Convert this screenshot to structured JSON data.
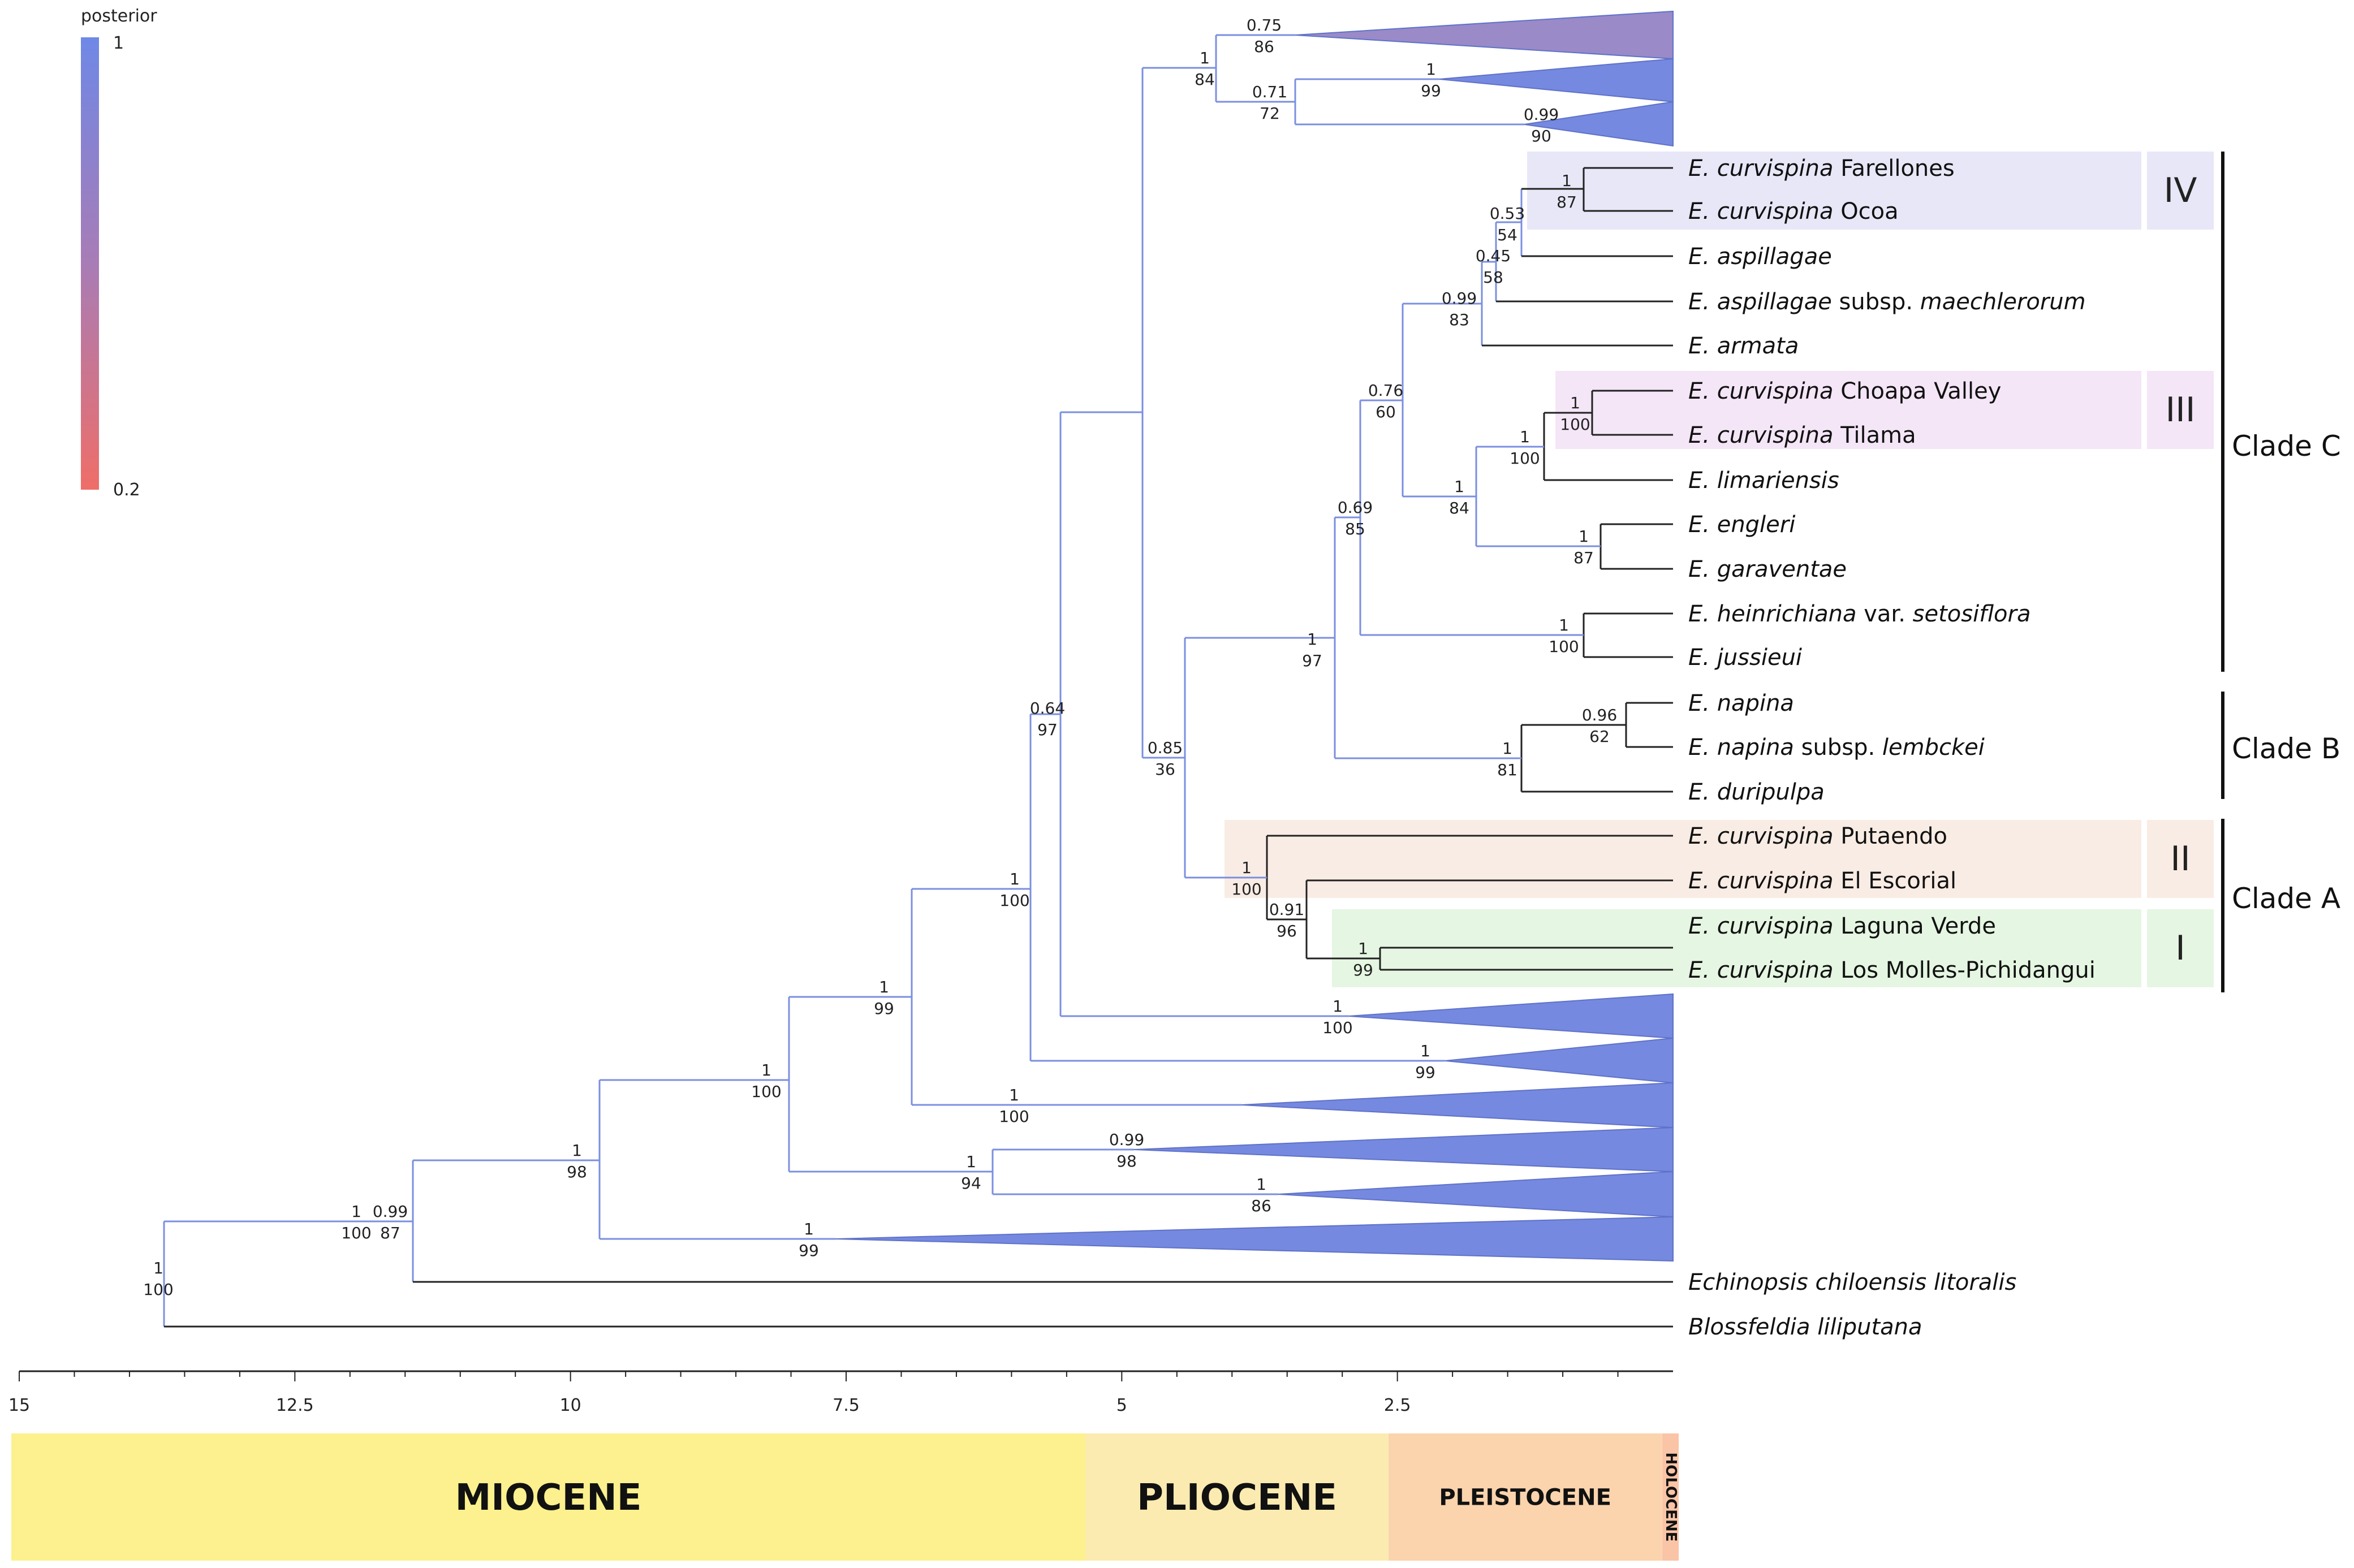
{
  "legend": {
    "title": "posterior",
    "max_label": "1",
    "min_label": "0.2",
    "max_color": "#6f88e6",
    "min_color": "#ef6e68"
  },
  "axis": {
    "range_my": [
      15,
      0
    ],
    "ticks": [
      "15",
      "12.5",
      "10",
      "7.5",
      "5",
      "2.5"
    ]
  },
  "epochs": [
    {
      "name": "MIOCENE",
      "color": "#fcf18e"
    },
    {
      "name": "PLIOCENE",
      "color": "#fcebb0"
    },
    {
      "name": "PLEISTOCENE",
      "color": "#fbd3ad"
    },
    {
      "name": "HOLOCENE",
      "color": "#fac4a6"
    }
  ],
  "taxa": [
    {
      "genus": "E.",
      "epithet": "curvispina",
      "rest": "Farellones"
    },
    {
      "genus": "E.",
      "epithet": "curvispina",
      "rest": "Ocoa"
    },
    {
      "genus": "E.",
      "epithet": "aspillagae",
      "rest": ""
    },
    {
      "genus": "E.",
      "epithet": "aspillagae",
      "rest": "subsp.",
      "infra": "maechlerorum"
    },
    {
      "genus": "E.",
      "epithet": "armata",
      "rest": ""
    },
    {
      "genus": "E.",
      "epithet": "curvispina",
      "rest": "Choapa Valley"
    },
    {
      "genus": "E.",
      "epithet": "curvispina",
      "rest": "Tilama"
    },
    {
      "genus": "E.",
      "epithet": "limariensis",
      "rest": ""
    },
    {
      "genus": "E.",
      "epithet": "engleri",
      "rest": ""
    },
    {
      "genus": "E.",
      "epithet": "garaventae",
      "rest": ""
    },
    {
      "genus": "E.",
      "epithet": "heinrichiana",
      "rest": "var.",
      "infra": "setosiflora"
    },
    {
      "genus": "E.",
      "epithet": "jussieui",
      "rest": ""
    },
    {
      "genus": "E.",
      "epithet": "napina",
      "rest": ""
    },
    {
      "genus": "E.",
      "epithet": "napina",
      "rest": "subsp.",
      "infra": "lembckei"
    },
    {
      "genus": "E.",
      "epithet": "duripulpa",
      "rest": ""
    },
    {
      "genus": "E.",
      "epithet": "curvispina",
      "rest": "Putaendo"
    },
    {
      "genus": "E.",
      "epithet": "curvispina",
      "rest": "El Escorial"
    },
    {
      "genus": "E.",
      "epithet": "curvispina",
      "rest": "Laguna Verde"
    },
    {
      "genus": "E.",
      "epithet": "curvispina",
      "rest": "Los Molles-Pichidangui"
    },
    {
      "genus": "",
      "epithet": "Echinopsis chiloensis litoralis",
      "rest": ""
    },
    {
      "genus": "",
      "epithet": "Blossfeldia liliputana",
      "rest": ""
    }
  ],
  "groups": [
    {
      "label": "IV",
      "color": "#e7e7f8"
    },
    {
      "label": "III",
      "color": "#f4e5f7"
    },
    {
      "label": "II",
      "color": "#f9ece4"
    },
    {
      "label": "I",
      "color": "#e5f6e2"
    }
  ],
  "clades": [
    "Clade C",
    "Clade B",
    "Clade A"
  ],
  "supports": [
    {
      "pp": "0.75",
      "bs": "86"
    },
    {
      "pp": "1",
      "bs": "84"
    },
    {
      "pp": "0.71",
      "bs": "72"
    },
    {
      "pp": "1",
      "bs": "99"
    },
    {
      "pp": "0.99",
      "bs": "90"
    },
    {
      "pp": "1",
      "bs": "87"
    },
    {
      "pp": "0.53",
      "bs": "54"
    },
    {
      "pp": "0.45",
      "bs": "58"
    },
    {
      "pp": "0.99",
      "bs": "83"
    },
    {
      "pp": "0.76",
      "bs": "60"
    },
    {
      "pp": "1",
      "bs": "100"
    },
    {
      "pp": "1",
      "bs": "100"
    },
    {
      "pp": "1",
      "bs": "84"
    },
    {
      "pp": "1",
      "bs": "87"
    },
    {
      "pp": "0.69",
      "bs": "85"
    },
    {
      "pp": "1",
      "bs": "100"
    },
    {
      "pp": "1",
      "bs": "97"
    },
    {
      "pp": "0.96",
      "bs": "62"
    },
    {
      "pp": "1",
      "bs": "81"
    },
    {
      "pp": "0.85",
      "bs": "36"
    },
    {
      "pp": "1",
      "bs": "100"
    },
    {
      "pp": "0.91",
      "bs": "96"
    },
    {
      "pp": "1",
      "bs": "99"
    },
    {
      "pp": "1",
      "bs": "100"
    },
    {
      "pp": "0.64",
      "bs": "97"
    },
    {
      "pp": "1",
      "bs": "100"
    },
    {
      "pp": "1",
      "bs": "99"
    },
    {
      "pp": "1",
      "bs": "100"
    },
    {
      "pp": "1",
      "bs": "99"
    },
    {
      "pp": "0.99",
      "bs": "98"
    },
    {
      "pp": "1",
      "bs": "86"
    },
    {
      "pp": "1",
      "bs": "94"
    },
    {
      "pp": "1",
      "bs": "100"
    },
    {
      "pp": "1",
      "bs": "98"
    },
    {
      "pp": "0.99",
      "bs": "87"
    },
    {
      "pp": "1",
      "bs": "99"
    },
    {
      "pp": "1",
      "bs": "100"
    },
    {
      "pp": "1",
      "bs": "100"
    }
  ],
  "style": {
    "blue_branch": "#7b8fe0",
    "dark_branch": "#222222",
    "collapsed_fill": "#7589e0",
    "collapsed_fill_top": "#9a8ac8"
  }
}
